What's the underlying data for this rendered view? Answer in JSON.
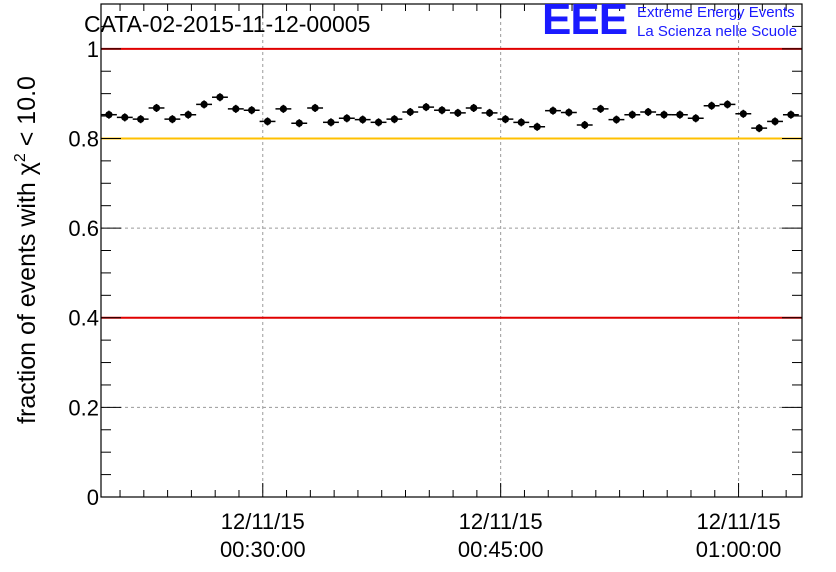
{
  "title": "CATA-02-2015-11-12-00005",
  "logo": {
    "mark": "EEE",
    "line1": "Extreme Energy Events",
    "line2": "La Scienza nelle Scuole",
    "color": "#1a1aff"
  },
  "chart_data": {
    "type": "scatter",
    "title": "CATA-02-2015-11-12-00005",
    "xlabel": "",
    "ylabel_parts": [
      "fraction of events with χ",
      "2",
      " < 10.0"
    ],
    "x_unit": "minutes",
    "xlim": [
      19.8,
      64.0
    ],
    "ylim": [
      0,
      1.1
    ],
    "grid": true,
    "x_ticks": [
      {
        "value": 30,
        "date": "12/11/15",
        "time": "00:30:00"
      },
      {
        "value": 45,
        "date": "12/11/15",
        "time": "00:45:00"
      },
      {
        "value": 60,
        "date": "12/11/15",
        "time": "01:00:00"
      }
    ],
    "y_ticks": [
      {
        "value": 0,
        "label": "0"
      },
      {
        "value": 0.2,
        "label": "0.2"
      },
      {
        "value": 0.4,
        "label": "0.4"
      },
      {
        "value": 0.6,
        "label": "0.6"
      },
      {
        "value": 0.8,
        "label": "0.8"
      },
      {
        "value": 1,
        "label": "1"
      }
    ],
    "reference_lines": [
      {
        "y": 1.0,
        "color": "#e00000"
      },
      {
        "y": 0.8,
        "color": "#ffc000"
      },
      {
        "y": 0.4,
        "color": "#e00000"
      }
    ],
    "series": [
      {
        "x": [
          20.3,
          21.3,
          22.3,
          23.3,
          24.3,
          25.3,
          26.3,
          27.3,
          28.3,
          29.3,
          30.3,
          31.3,
          32.3,
          33.3,
          34.3,
          35.3,
          36.3,
          37.3,
          38.3,
          39.3,
          40.3,
          41.3,
          42.3,
          43.3,
          44.3,
          45.3,
          46.3,
          47.3,
          48.3,
          49.3,
          50.3,
          51.3,
          52.3,
          53.3,
          54.3,
          55.3,
          56.3,
          57.3,
          58.3,
          59.3,
          60.3,
          61.3,
          62.3,
          63.3
        ],
        "y": [
          0.853,
          0.847,
          0.843,
          0.868,
          0.843,
          0.853,
          0.876,
          0.892,
          0.866,
          0.863,
          0.838,
          0.866,
          0.834,
          0.868,
          0.836,
          0.845,
          0.842,
          0.836,
          0.843,
          0.859,
          0.87,
          0.863,
          0.857,
          0.868,
          0.857,
          0.843,
          0.836,
          0.826,
          0.862,
          0.858,
          0.83,
          0.866,
          0.842,
          0.853,
          0.859,
          0.853,
          0.853,
          0.845,
          0.873,
          0.876,
          0.855,
          0.823,
          0.838,
          0.853
        ],
        "yerr": 0.009,
        "xerr": 0.5,
        "color": "#000000"
      }
    ]
  }
}
